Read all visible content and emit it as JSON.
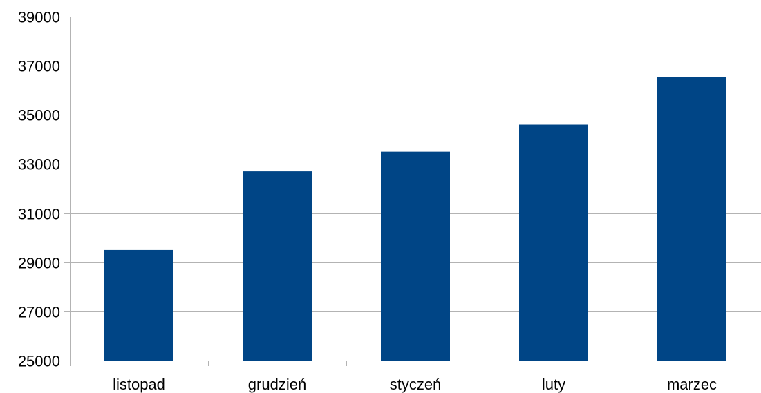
{
  "chart_data": {
    "type": "bar",
    "title": "",
    "xlabel": "",
    "ylabel": "",
    "categories": [
      "listopad",
      "grudzień",
      "styczeń",
      "luty",
      "marzec"
    ],
    "values": [
      29500,
      32700,
      33500,
      34600,
      36550
    ],
    "ylim": [
      25000,
      39000
    ],
    "yticks": [
      25000,
      27000,
      29000,
      31000,
      33000,
      35000,
      37000,
      39000
    ],
    "grid": true,
    "legend": "none",
    "bar_color": "#004586",
    "grid_color": "#b3b3b3"
  }
}
